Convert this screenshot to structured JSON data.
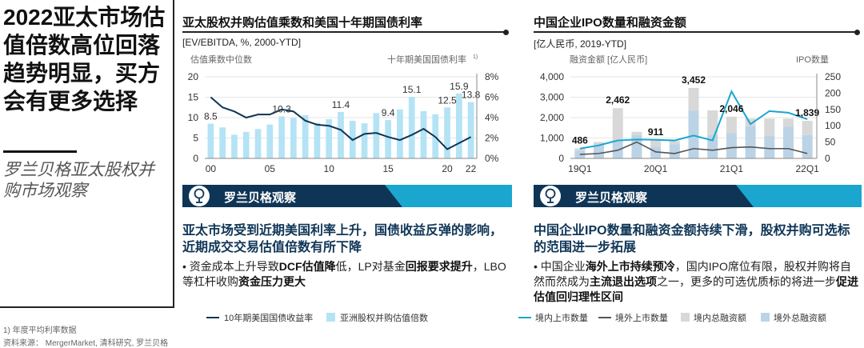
{
  "left": {
    "title": "2022亚太市场估值倍数高位回落趋势明显，买方会有更多选择",
    "subtitle": "罗兰贝格亚太股权并购市场观察",
    "footnote": "1) 年度平均利率数据",
    "source": "资料来源：  MergerMarket,  清科研究,  罗兰贝格"
  },
  "panel1": {
    "title": "亚太股权并购估值乘数和美国十年期国债利率",
    "subtitle": "[EV/EBITDA, %, 2000-YTD]",
    "left_axis_label": "估值乘数中位数",
    "right_axis_label": "十年期美国国债利率",
    "right_axis_sup": "1)",
    "banner": "罗兰贝格观察",
    "headline": "亚太市场受到近期美国利率上升，国债收益反弹的影响，近期成交交易估值倍数有所下降",
    "bullet_parts": [
      {
        "t": "资金成本上升导致",
        "b": false
      },
      {
        "t": "DCF估值降",
        "b": true
      },
      {
        "t": "低，LP对基金",
        "b": false
      },
      {
        "t": "回报要求提升",
        "b": true
      },
      {
        "t": "，LBO等杠杆收购",
        "b": false
      },
      {
        "t": "资金压力更大",
        "b": true
      }
    ],
    "legend_line": "10年期美国国债收益率",
    "legend_bar": "亚洲股权并购估值倍数"
  },
  "panel2": {
    "title": "中国企业IPO数量和融资金额",
    "subtitle": "[亿人民币, 2019-YTD]",
    "left_axis_label": "融资金额 [亿人民币]",
    "right_axis_label": "IPO数量",
    "banner": "罗兰贝格观察",
    "headline": "中国企业IPO数量和融资金额持续下滑，股权并购可选标的范围进一步拓展",
    "bullet_parts": [
      {
        "t": "中国企业",
        "b": false
      },
      {
        "t": "海外上市持续预冷",
        "b": true
      },
      {
        "t": "，国内IPO席位有限，股权并购将自然而然成为",
        "b": false
      },
      {
        "t": "主流退出选项",
        "b": true
      },
      {
        "t": "之一，更多的可选优质标的将进一步",
        "b": false
      },
      {
        "t": "促进估值回归理性区间",
        "b": true
      }
    ],
    "legend": [
      "境内上市数量",
      "境外上市数量",
      "境内总融资额",
      "境外总融资额"
    ]
  },
  "colors": {
    "navy": "#0f3556",
    "cyan": "#1aa6cf",
    "lightbar": "#b3e3f5",
    "greybar": "#d8d8d8",
    "paleblue": "#bcd3e6"
  },
  "chart_data": [
    {
      "type": "bar",
      "title": "亚太股权并购估值乘数和美国十年期国债利率",
      "x": [
        "00",
        "01",
        "02",
        "03",
        "04",
        "05",
        "06",
        "07",
        "08",
        "09",
        "10",
        "11",
        "12",
        "13",
        "14",
        "15",
        "16",
        "17",
        "18",
        "19",
        "20",
        "21",
        "22"
      ],
      "x_tick_labels": [
        "00",
        "05",
        "10",
        "15",
        "20",
        "22"
      ],
      "ylim_left": [
        0,
        20
      ],
      "ylim_right": [
        0,
        8
      ],
      "y_ticks_left": [
        "0",
        "5",
        "10",
        "15",
        "20"
      ],
      "y_ticks_right": [
        "0%",
        "2%",
        "4%",
        "6%",
        "8%"
      ],
      "series": [
        {
          "name": "亚洲股权并购估值倍数",
          "kind": "bar",
          "axis": "left",
          "values": [
            8.5,
            7.6,
            5.8,
            6.5,
            7.2,
            8.3,
            10.3,
            9.9,
            10.6,
            8.7,
            9.6,
            11.4,
            9.2,
            8.6,
            11.1,
            9.4,
            12.0,
            15.1,
            11.6,
            10.8,
            12.5,
            15.9,
            13.8
          ]
        },
        {
          "name": "10年期美国国债收益率",
          "kind": "line",
          "axis": "right",
          "values": [
            6.0,
            5.0,
            4.6,
            4.0,
            4.3,
            4.3,
            4.8,
            4.6,
            3.7,
            3.3,
            3.2,
            2.8,
            1.8,
            2.4,
            2.5,
            2.1,
            1.8,
            2.3,
            2.9,
            2.1,
            0.9,
            1.5,
            2.1
          ]
        }
      ],
      "data_labels": [
        "8.5",
        "10.3",
        "11.4",
        "9.4",
        "15.1",
        "12.5",
        "15.9",
        "13.8"
      ]
    },
    {
      "type": "bar",
      "title": "中国企业IPO数量和融资金额",
      "x": [
        "19Q1",
        "19Q2",
        "19Q3",
        "19Q4",
        "20Q1",
        "20Q2",
        "20Q3",
        "20Q4",
        "21Q1",
        "21Q2",
        "21Q3",
        "21Q4",
        "22Q1"
      ],
      "x_tick_labels": [
        "19Q1",
        "20Q1",
        "21Q1",
        "22Q1"
      ],
      "ylim_left": [
        0,
        4000
      ],
      "ylim_right": [
        0,
        250
      ],
      "y_ticks_left": [
        "0",
        "1,000",
        "2,000",
        "3,000",
        "4,000"
      ],
      "y_ticks_right": [
        "0",
        "50",
        "100",
        "150",
        "200",
        "250"
      ],
      "series": [
        {
          "name": "境内总融资额",
          "kind": "bar",
          "axis": "left",
          "stack": "a",
          "values": [
            380,
            650,
            900,
            1150,
            580,
            700,
            2350,
            1150,
            1250,
            1600,
            1100,
            1550,
            1150
          ]
        },
        {
          "name": "境外总融资额",
          "kind": "bar",
          "axis": "left",
          "stack": "a",
          "values": [
            106,
            150,
            1562,
            150,
            331,
            150,
            1102,
            1200,
            796,
            350,
            850,
            400,
            689
          ]
        },
        {
          "name": "境内上市数量",
          "kind": "line",
          "axis": "right",
          "values": [
            30,
            40,
            55,
            58,
            57,
            55,
            70,
            55,
            205,
            105,
            145,
            140,
            120
          ]
        },
        {
          "name": "境外上市数量",
          "kind": "line",
          "axis": "right",
          "values": [
            12,
            15,
            25,
            50,
            20,
            15,
            30,
            25,
            33,
            35,
            30,
            30,
            15
          ]
        }
      ],
      "totals": [
        486,
        800,
        2462,
        1300,
        911,
        850,
        3452,
        2350,
        2046,
        1950,
        1950,
        1950,
        1839
      ],
      "data_labels": [
        "486",
        "2,462",
        "911",
        "3,452",
        "2,046",
        "1,839"
      ]
    }
  ]
}
